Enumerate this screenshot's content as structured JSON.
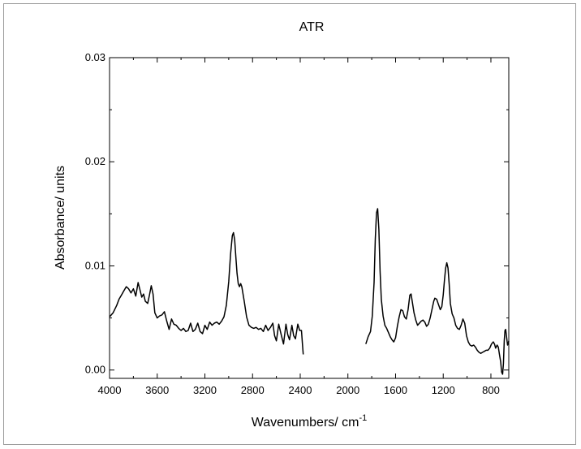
{
  "chart_data": {
    "type": "line",
    "title": "ATR",
    "xlabel": "Wavenumbers/ cm",
    "xlabel_sup": "-1",
    "ylabel": "Absorbance/ units",
    "xlim": [
      4000,
      650
    ],
    "ylim": [
      -0.0008,
      0.03
    ],
    "x_reversed": true,
    "grid": false,
    "x_ticks": [
      {
        "value": 4000,
        "label": "4000"
      },
      {
        "value": 3600,
        "label": "3600"
      },
      {
        "value": 3200,
        "label": "3200"
      },
      {
        "value": 2800,
        "label": "2800"
      },
      {
        "value": 2400,
        "label": "2400"
      },
      {
        "value": 2000,
        "label": "2000"
      },
      {
        "value": 1600,
        "label": "1600"
      },
      {
        "value": 1200,
        "label": "1200"
      },
      {
        "value": 800,
        "label": "800"
      }
    ],
    "y_ticks": [
      {
        "value": 0.0,
        "label": "0.00"
      },
      {
        "value": 0.01,
        "label": "0.01"
      },
      {
        "value": 0.02,
        "label": "0.02"
      },
      {
        "value": 0.03,
        "label": "0.03"
      }
    ],
    "color": "#000000",
    "series": [
      {
        "segments": [
          [
            [
              4000,
              0.0051
            ],
            [
              3970,
              0.0055
            ],
            [
              3940,
              0.0062
            ],
            [
              3920,
              0.0068
            ],
            [
              3900,
              0.0072
            ],
            [
              3880,
              0.0076
            ],
            [
              3860,
              0.008
            ],
            [
              3840,
              0.0078
            ],
            [
              3820,
              0.0074
            ],
            [
              3800,
              0.0078
            ],
            [
              3780,
              0.0071
            ],
            [
              3760,
              0.0084
            ],
            [
              3745,
              0.0077
            ],
            [
              3730,
              0.007
            ],
            [
              3715,
              0.0073
            ],
            [
              3700,
              0.0066
            ],
            [
              3680,
              0.0064
            ],
            [
              3665,
              0.0072
            ],
            [
              3650,
              0.0081
            ],
            [
              3635,
              0.0073
            ],
            [
              3620,
              0.0055
            ],
            [
              3600,
              0.005
            ],
            [
              3580,
              0.0052
            ],
            [
              3560,
              0.0053
            ],
            [
              3540,
              0.0056
            ],
            [
              3520,
              0.0047
            ],
            [
              3500,
              0.0039
            ],
            [
              3480,
              0.0049
            ],
            [
              3460,
              0.0044
            ],
            [
              3440,
              0.0043
            ],
            [
              3420,
              0.004
            ],
            [
              3400,
              0.0038
            ],
            [
              3380,
              0.004
            ],
            [
              3360,
              0.0037
            ],
            [
              3340,
              0.0038
            ],
            [
              3320,
              0.0045
            ],
            [
              3300,
              0.0037
            ],
            [
              3280,
              0.0039
            ],
            [
              3260,
              0.0045
            ],
            [
              3240,
              0.0037
            ],
            [
              3220,
              0.0035
            ],
            [
              3200,
              0.0043
            ],
            [
              3180,
              0.0039
            ],
            [
              3160,
              0.0046
            ],
            [
              3140,
              0.0043
            ],
            [
              3120,
              0.0045
            ],
            [
              3100,
              0.0046
            ],
            [
              3080,
              0.0044
            ],
            [
              3060,
              0.0047
            ],
            [
              3040,
              0.0051
            ],
            [
              3020,
              0.0062
            ],
            [
              3000,
              0.0085
            ],
            [
              2985,
              0.0111
            ],
            [
              2970,
              0.0129
            ],
            [
              2960,
              0.0132
            ],
            [
              2950,
              0.0125
            ],
            [
              2940,
              0.0108
            ],
            [
              2930,
              0.0093
            ],
            [
              2920,
              0.0083
            ],
            [
              2910,
              0.008
            ],
            [
              2900,
              0.0083
            ],
            [
              2890,
              0.008
            ],
            [
              2870,
              0.0066
            ],
            [
              2850,
              0.0051
            ],
            [
              2830,
              0.0043
            ],
            [
              2810,
              0.0041
            ],
            [
              2790,
              0.004
            ],
            [
              2770,
              0.0041
            ],
            [
              2750,
              0.0039
            ],
            [
              2730,
              0.004
            ],
            [
              2710,
              0.0037
            ],
            [
              2690,
              0.0043
            ],
            [
              2670,
              0.0038
            ],
            [
              2650,
              0.0041
            ],
            [
              2630,
              0.0045
            ],
            [
              2615,
              0.0033
            ],
            [
              2600,
              0.0028
            ],
            [
              2580,
              0.0044
            ],
            [
              2560,
              0.0034
            ],
            [
              2540,
              0.0025
            ],
            [
              2520,
              0.0044
            ],
            [
              2505,
              0.0034
            ],
            [
              2490,
              0.0029
            ],
            [
              2470,
              0.0043
            ],
            [
              2455,
              0.0033
            ],
            [
              2440,
              0.003
            ],
            [
              2420,
              0.0044
            ],
            [
              2405,
              0.0038
            ],
            [
              2390,
              0.0038
            ],
            [
              2380,
              0.0023
            ],
            [
              2375,
              0.0015
            ]
          ],
          [
            [
              1850,
              0.0025
            ],
            [
              1830,
              0.0032
            ],
            [
              1810,
              0.0037
            ],
            [
              1795,
              0.0052
            ],
            [
              1780,
              0.0084
            ],
            [
              1770,
              0.0126
            ],
            [
              1760,
              0.0151
            ],
            [
              1750,
              0.0155
            ],
            [
              1740,
              0.0135
            ],
            [
              1730,
              0.0095
            ],
            [
              1720,
              0.0068
            ],
            [
              1705,
              0.0052
            ],
            [
              1690,
              0.0043
            ],
            [
              1675,
              0.004
            ],
            [
              1660,
              0.0036
            ],
            [
              1645,
              0.0032
            ],
            [
              1630,
              0.0029
            ],
            [
              1615,
              0.0027
            ],
            [
              1600,
              0.0031
            ],
            [
              1585,
              0.0042
            ],
            [
              1570,
              0.0051
            ],
            [
              1555,
              0.0058
            ],
            [
              1540,
              0.0057
            ],
            [
              1525,
              0.0051
            ],
            [
              1510,
              0.0049
            ],
            [
              1495,
              0.0058
            ],
            [
              1480,
              0.0072
            ],
            [
              1470,
              0.0073
            ],
            [
              1460,
              0.0066
            ],
            [
              1445,
              0.0055
            ],
            [
              1430,
              0.0048
            ],
            [
              1415,
              0.0043
            ],
            [
              1400,
              0.0045
            ],
            [
              1385,
              0.0047
            ],
            [
              1370,
              0.0048
            ],
            [
              1355,
              0.0046
            ],
            [
              1340,
              0.0042
            ],
            [
              1325,
              0.0044
            ],
            [
              1310,
              0.005
            ],
            [
              1295,
              0.0058
            ],
            [
              1280,
              0.0066
            ],
            [
              1270,
              0.0069
            ],
            [
              1255,
              0.0068
            ],
            [
              1240,
              0.0063
            ],
            [
              1225,
              0.0058
            ],
            [
              1212,
              0.0061
            ],
            [
              1200,
              0.0072
            ],
            [
              1190,
              0.0086
            ],
            [
              1180,
              0.0098
            ],
            [
              1170,
              0.0103
            ],
            [
              1160,
              0.0098
            ],
            [
              1150,
              0.0082
            ],
            [
              1140,
              0.0064
            ],
            [
              1125,
              0.0054
            ],
            [
              1110,
              0.005
            ],
            [
              1095,
              0.0043
            ],
            [
              1080,
              0.004
            ],
            [
              1065,
              0.0039
            ],
            [
              1050,
              0.0043
            ],
            [
              1035,
              0.0049
            ],
            [
              1020,
              0.0045
            ],
            [
              1005,
              0.0033
            ],
            [
              990,
              0.0027
            ],
            [
              975,
              0.0024
            ],
            [
              960,
              0.0023
            ],
            [
              945,
              0.0024
            ],
            [
              930,
              0.0022
            ],
            [
              915,
              0.0019
            ],
            [
              900,
              0.0017
            ],
            [
              885,
              0.0016
            ],
            [
              870,
              0.0017
            ],
            [
              855,
              0.0018
            ],
            [
              840,
              0.0019
            ],
            [
              825,
              0.0019
            ],
            [
              810,
              0.0021
            ],
            [
              795,
              0.0025
            ],
            [
              780,
              0.0027
            ],
            [
              770,
              0.0025
            ],
            [
              760,
              0.0021
            ],
            [
              748,
              0.0024
            ],
            [
              738,
              0.0022
            ],
            [
              728,
              0.0015
            ],
            [
              718,
              0.0008
            ],
            [
              710,
              -0.0002
            ],
            [
              702,
              -0.0004
            ],
            [
              695,
              0.0006
            ],
            [
              688,
              0.0028
            ],
            [
              682,
              0.0038
            ],
            [
              676,
              0.0039
            ],
            [
              668,
              0.0031
            ],
            [
              660,
              0.0024
            ],
            [
              652,
              0.0027
            ],
            [
              650,
              0.0028
            ]
          ]
        ]
      }
    ]
  }
}
